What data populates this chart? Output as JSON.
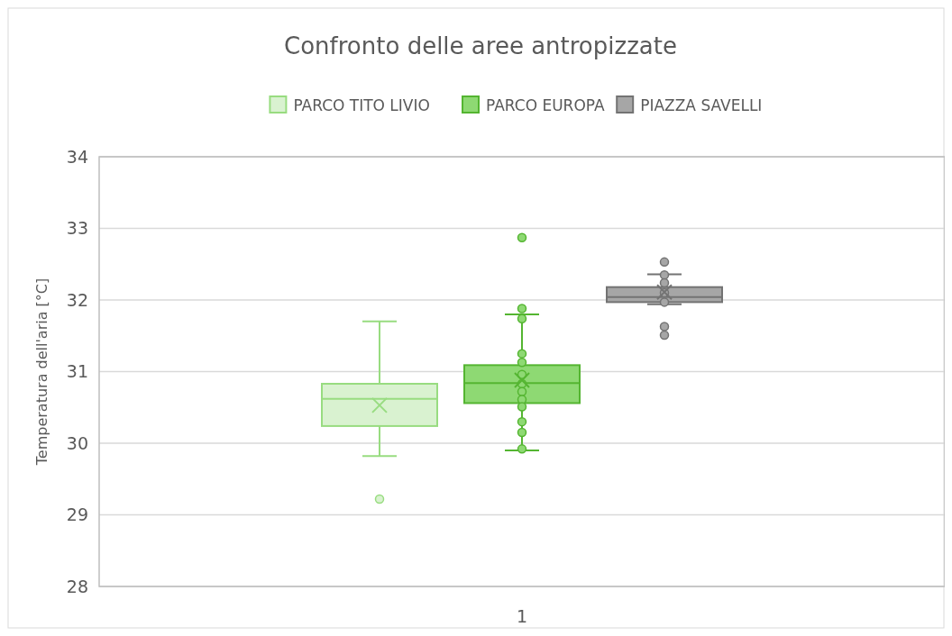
{
  "chart_data": {
    "type": "box",
    "title": "Confronto delle aree antropizzate",
    "ylabel": "Temperatura dell'aria [°C]",
    "categories": [
      "1"
    ],
    "ylim": [
      28,
      34
    ],
    "yticks": [
      28,
      29,
      30,
      31,
      32,
      33,
      34
    ],
    "grid": "y",
    "legend": "top",
    "series": [
      {
        "name": "PARCO TITO LIVIO",
        "color": "#d9f2d0",
        "boxes": [
          {
            "low": 29.82,
            "q1": 30.24,
            "median": 30.62,
            "q3": 30.83,
            "high": 31.7,
            "mean": 30.53,
            "outliers": [
              29.22
            ]
          }
        ]
      },
      {
        "name": "PARCO EUROPA",
        "color": "#8ed973",
        "boxes": [
          {
            "low": 29.9,
            "q1": 30.56,
            "median": 30.84,
            "q3": 31.09,
            "high": 31.8,
            "mean": 30.88,
            "outliers": [
              32.87,
              31.88,
              31.74,
              31.25,
              31.13,
              30.96,
              30.83,
              30.72,
              30.61,
              30.51,
              30.3,
              30.15,
              29.92
            ]
          }
        ]
      },
      {
        "name": "PIAZZA SAVELLI",
        "color": "#a6a6a6",
        "boxes": [
          {
            "low": 31.94,
            "q1": 31.97,
            "median": 32.04,
            "q3": 32.18,
            "high": 32.36,
            "mean": 32.11,
            "outliers": [
              32.53,
              32.35,
              32.24,
              32.1,
              31.97,
              31.63,
              31.51
            ]
          }
        ]
      }
    ]
  }
}
